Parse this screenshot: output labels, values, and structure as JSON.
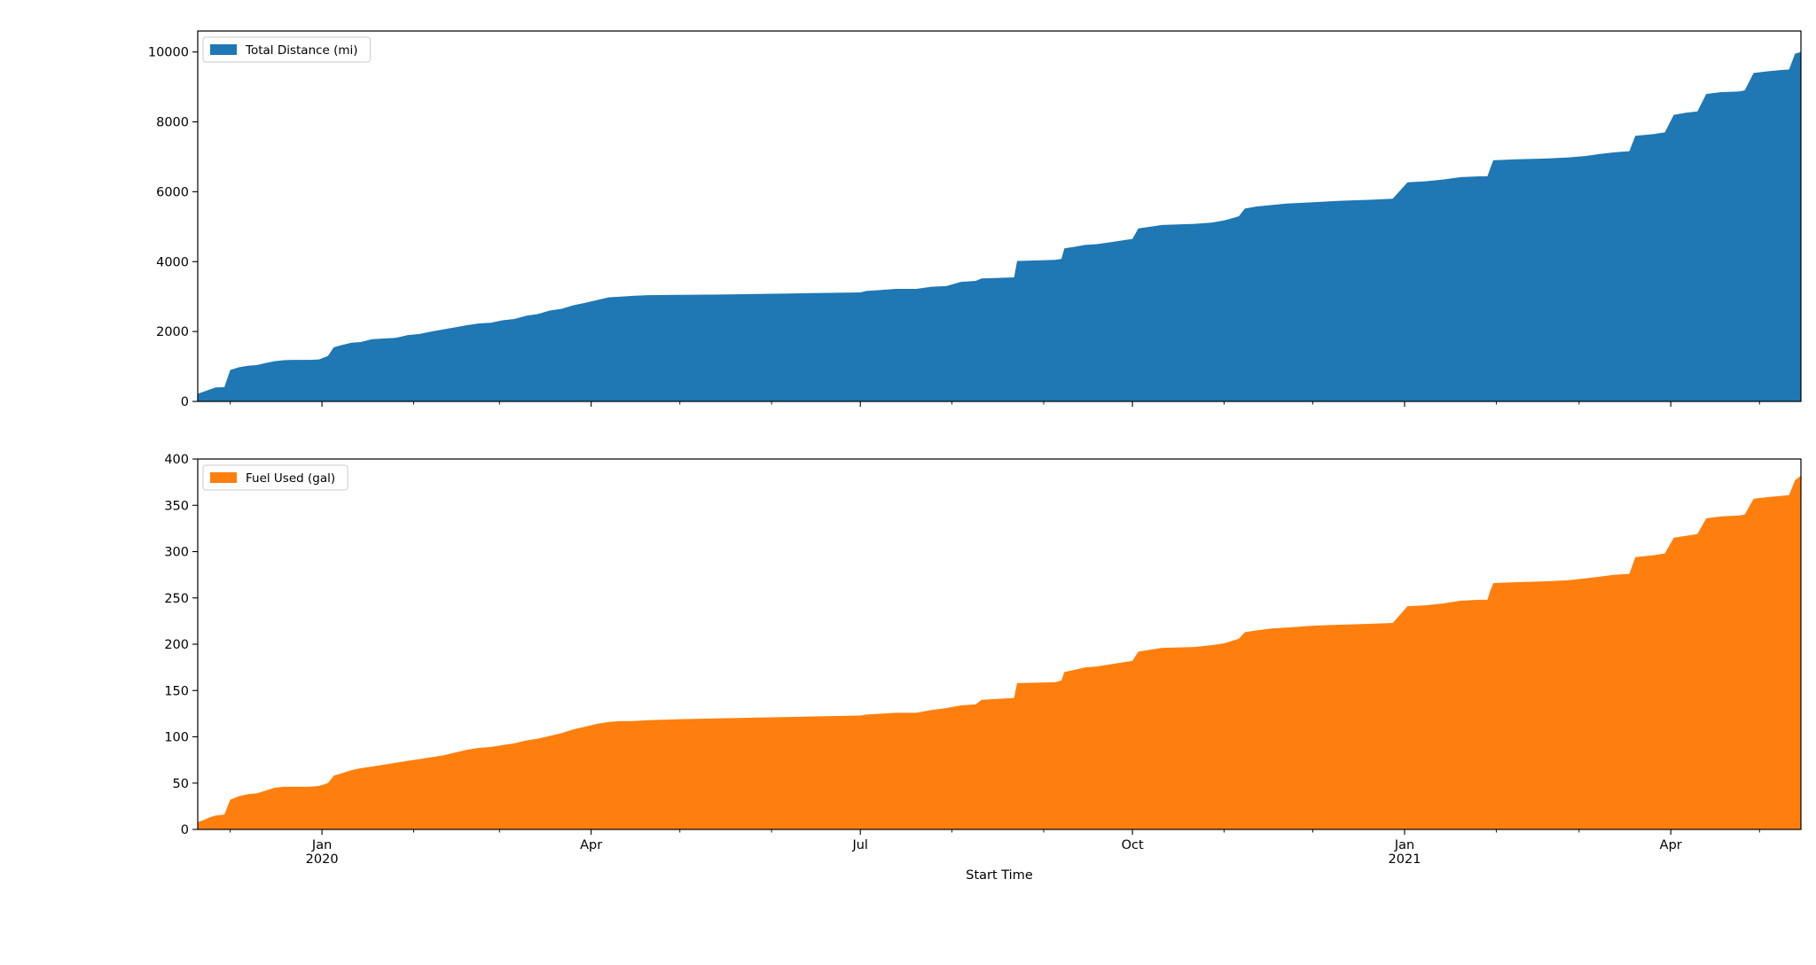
{
  "chart_data": {
    "type": "area",
    "shared_x": {
      "label": "Start Time",
      "range": [
        "2019-11-20",
        "2021-05-15"
      ],
      "major_ticks": [
        {
          "date": "2020-01-01",
          "label": "Jan",
          "sublabel": "2020"
        },
        {
          "date": "2020-04-01",
          "label": "Apr",
          "sublabel": ""
        },
        {
          "date": "2020-07-01",
          "label": "Jul",
          "sublabel": ""
        },
        {
          "date": "2020-10-01",
          "label": "Oct",
          "sublabel": ""
        },
        {
          "date": "2021-01-01",
          "label": "Jan",
          "sublabel": "2021"
        },
        {
          "date": "2021-04-01",
          "label": "Apr",
          "sublabel": ""
        }
      ],
      "minor_ticks": [
        "2019-12-01",
        "2020-02-01",
        "2020-03-01",
        "2020-05-01",
        "2020-06-01",
        "2020-08-01",
        "2020-09-01",
        "2020-11-01",
        "2020-12-01",
        "2021-02-01",
        "2021-03-01",
        "2021-05-01"
      ]
    },
    "panels": [
      {
        "series": {
          "name": "Total Distance (mi)",
          "color": "#1f77b4",
          "points": [
            [
              "2019-11-20",
              220
            ],
            [
              "2019-11-22",
              280
            ],
            [
              "2019-11-24",
              340
            ],
            [
              "2019-11-26",
              400
            ],
            [
              "2019-11-29",
              410
            ],
            [
              "2019-12-01",
              900
            ],
            [
              "2019-12-04",
              980
            ],
            [
              "2019-12-07",
              1020
            ],
            [
              "2019-12-10",
              1040
            ],
            [
              "2019-12-13",
              1100
            ],
            [
              "2019-12-16",
              1150
            ],
            [
              "2019-12-19",
              1180
            ],
            [
              "2019-12-22",
              1190
            ],
            [
              "2019-12-25",
              1190
            ],
            [
              "2019-12-28",
              1190
            ],
            [
              "2019-12-31",
              1200
            ],
            [
              "2020-01-03",
              1300
            ],
            [
              "2020-01-05",
              1550
            ],
            [
              "2020-01-08",
              1620
            ],
            [
              "2020-01-11",
              1680
            ],
            [
              "2020-01-14",
              1700
            ],
            [
              "2020-01-18",
              1780
            ],
            [
              "2020-01-22",
              1800
            ],
            [
              "2020-01-26",
              1820
            ],
            [
              "2020-01-30",
              1900
            ],
            [
              "2020-02-03",
              1930
            ],
            [
              "2020-02-07",
              2000
            ],
            [
              "2020-02-11",
              2060
            ],
            [
              "2020-02-15",
              2120
            ],
            [
              "2020-02-19",
              2180
            ],
            [
              "2020-02-23",
              2230
            ],
            [
              "2020-02-27",
              2250
            ],
            [
              "2020-03-02",
              2320
            ],
            [
              "2020-03-06",
              2360
            ],
            [
              "2020-03-10",
              2450
            ],
            [
              "2020-03-14",
              2500
            ],
            [
              "2020-03-18",
              2600
            ],
            [
              "2020-03-22",
              2650
            ],
            [
              "2020-03-26",
              2750
            ],
            [
              "2020-03-30",
              2820
            ],
            [
              "2020-04-03",
              2900
            ],
            [
              "2020-04-07",
              2980
            ],
            [
              "2020-04-11",
              3000
            ],
            [
              "2020-04-15",
              3020
            ],
            [
              "2020-04-20",
              3040
            ],
            [
              "2020-05-01",
              3050
            ],
            [
              "2020-05-15",
              3060
            ],
            [
              "2020-06-01",
              3080
            ],
            [
              "2020-06-15",
              3100
            ],
            [
              "2020-07-01",
              3120
            ],
            [
              "2020-07-03",
              3160
            ],
            [
              "2020-07-08",
              3190
            ],
            [
              "2020-07-13",
              3220
            ],
            [
              "2020-07-20",
              3220
            ],
            [
              "2020-07-25",
              3280
            ],
            [
              "2020-07-30",
              3300
            ],
            [
              "2020-08-04",
              3420
            ],
            [
              "2020-08-09",
              3450
            ],
            [
              "2020-08-11",
              3520
            ],
            [
              "2020-08-22",
              3550
            ],
            [
              "2020-08-23",
              4020
            ],
            [
              "2020-09-05",
              4050
            ],
            [
              "2020-09-07",
              4080
            ],
            [
              "2020-09-08",
              4380
            ],
            [
              "2020-09-11",
              4420
            ],
            [
              "2020-09-15",
              4480
            ],
            [
              "2020-09-19",
              4500
            ],
            [
              "2020-09-23",
              4550
            ],
            [
              "2020-09-27",
              4600
            ],
            [
              "2020-10-01",
              4650
            ],
            [
              "2020-10-03",
              4950
            ],
            [
              "2020-10-07",
              5000
            ],
            [
              "2020-10-11",
              5050
            ],
            [
              "2020-10-22",
              5080
            ],
            [
              "2020-10-28",
              5120
            ],
            [
              "2020-11-01",
              5180
            ],
            [
              "2020-11-04",
              5250
            ],
            [
              "2020-11-06",
              5300
            ],
            [
              "2020-11-08",
              5520
            ],
            [
              "2020-11-12",
              5580
            ],
            [
              "2020-11-17",
              5620
            ],
            [
              "2020-11-22",
              5660
            ],
            [
              "2020-12-01",
              5700
            ],
            [
              "2020-12-10",
              5740
            ],
            [
              "2020-12-20",
              5770
            ],
            [
              "2020-12-28",
              5800
            ],
            [
              "2021-01-02",
              6270
            ],
            [
              "2021-01-08",
              6300
            ],
            [
              "2021-01-14",
              6350
            ],
            [
              "2021-01-20",
              6420
            ],
            [
              "2021-01-26",
              6440
            ],
            [
              "2021-01-29",
              6440
            ],
            [
              "2021-01-30",
              6680
            ],
            [
              "2021-01-31",
              6900
            ],
            [
              "2021-02-08",
              6930
            ],
            [
              "2021-02-18",
              6950
            ],
            [
              "2021-02-25",
              6980
            ],
            [
              "2021-03-03",
              7020
            ],
            [
              "2021-03-08",
              7080
            ],
            [
              "2021-03-13",
              7130
            ],
            [
              "2021-03-18",
              7160
            ],
            [
              "2021-03-20",
              7600
            ],
            [
              "2021-03-26",
              7650
            ],
            [
              "2021-03-30",
              7700
            ],
            [
              "2021-04-02",
              8200
            ],
            [
              "2021-04-06",
              8260
            ],
            [
              "2021-04-10",
              8300
            ],
            [
              "2021-04-13",
              8800
            ],
            [
              "2021-04-18",
              8850
            ],
            [
              "2021-04-24",
              8870
            ],
            [
              "2021-04-26",
              8900
            ],
            [
              "2021-04-29",
              9400
            ],
            [
              "2021-05-04",
              9450
            ],
            [
              "2021-05-08",
              9480
            ],
            [
              "2021-05-11",
              9500
            ],
            [
              "2021-05-13",
              9950
            ],
            [
              "2021-05-15",
              10000
            ]
          ]
        },
        "ylim": [
          0,
          10600
        ],
        "yticks": [
          0,
          2000,
          4000,
          6000,
          8000,
          10000
        ],
        "legend_position": "upper-left"
      },
      {
        "series": {
          "name": "Fuel Used (gal)",
          "color": "#ff7f0e",
          "points": [
            [
              "2019-11-20",
              8
            ],
            [
              "2019-11-22",
              10
            ],
            [
              "2019-11-24",
              13
            ],
            [
              "2019-11-26",
              15
            ],
            [
              "2019-11-29",
              16
            ],
            [
              "2019-12-01",
              32
            ],
            [
              "2019-12-04",
              36
            ],
            [
              "2019-12-07",
              38
            ],
            [
              "2019-12-10",
              39
            ],
            [
              "2019-12-13",
              42
            ],
            [
              "2019-12-16",
              45
            ],
            [
              "2019-12-19",
              46
            ],
            [
              "2019-12-22",
              46
            ],
            [
              "2019-12-25",
              46
            ],
            [
              "2019-12-28",
              46
            ],
            [
              "2019-12-31",
              47
            ],
            [
              "2020-01-03",
              50
            ],
            [
              "2020-01-05",
              58
            ],
            [
              "2020-01-08",
              61
            ],
            [
              "2020-01-11",
              64
            ],
            [
              "2020-01-14",
              66
            ],
            [
              "2020-01-18",
              68
            ],
            [
              "2020-01-22",
              70
            ],
            [
              "2020-01-26",
              72
            ],
            [
              "2020-01-30",
              74
            ],
            [
              "2020-02-03",
              76
            ],
            [
              "2020-02-07",
              78
            ],
            [
              "2020-02-11",
              80
            ],
            [
              "2020-02-15",
              83
            ],
            [
              "2020-02-19",
              86
            ],
            [
              "2020-02-23",
              88
            ],
            [
              "2020-02-27",
              89
            ],
            [
              "2020-03-02",
              91
            ],
            [
              "2020-03-06",
              93
            ],
            [
              "2020-03-10",
              96
            ],
            [
              "2020-03-14",
              98
            ],
            [
              "2020-03-18",
              101
            ],
            [
              "2020-03-22",
              104
            ],
            [
              "2020-03-26",
              108
            ],
            [
              "2020-03-30",
              111
            ],
            [
              "2020-04-03",
              114
            ],
            [
              "2020-04-07",
              116
            ],
            [
              "2020-04-11",
              117
            ],
            [
              "2020-04-15",
              117
            ],
            [
              "2020-04-20",
              118
            ],
            [
              "2020-05-01",
              119
            ],
            [
              "2020-05-15",
              120
            ],
            [
              "2020-06-01",
              121
            ],
            [
              "2020-06-15",
              122
            ],
            [
              "2020-07-01",
              123
            ],
            [
              "2020-07-03",
              124
            ],
            [
              "2020-07-08",
              125
            ],
            [
              "2020-07-13",
              126
            ],
            [
              "2020-07-20",
              126
            ],
            [
              "2020-07-25",
              129
            ],
            [
              "2020-07-30",
              131
            ],
            [
              "2020-08-04",
              134
            ],
            [
              "2020-08-09",
              135
            ],
            [
              "2020-08-11",
              140
            ],
            [
              "2020-08-22",
              142
            ],
            [
              "2020-08-23",
              158
            ],
            [
              "2020-09-05",
              159
            ],
            [
              "2020-09-07",
              161
            ],
            [
              "2020-09-08",
              170
            ],
            [
              "2020-09-11",
              172
            ],
            [
              "2020-09-15",
              175
            ],
            [
              "2020-09-19",
              176
            ],
            [
              "2020-09-23",
              178
            ],
            [
              "2020-09-27",
              180
            ],
            [
              "2020-10-01",
              182
            ],
            [
              "2020-10-03",
              192
            ],
            [
              "2020-10-07",
              194
            ],
            [
              "2020-10-11",
              196
            ],
            [
              "2020-10-22",
              197
            ],
            [
              "2020-10-28",
              199
            ],
            [
              "2020-11-01",
              201
            ],
            [
              "2020-11-04",
              204
            ],
            [
              "2020-11-06",
              206
            ],
            [
              "2020-11-08",
              213
            ],
            [
              "2020-11-12",
              215
            ],
            [
              "2020-11-17",
              217
            ],
            [
              "2020-11-22",
              218
            ],
            [
              "2020-12-01",
              220
            ],
            [
              "2020-12-10",
              221
            ],
            [
              "2020-12-20",
              222
            ],
            [
              "2020-12-28",
              223
            ],
            [
              "2021-01-02",
              241
            ],
            [
              "2021-01-08",
              242
            ],
            [
              "2021-01-14",
              244
            ],
            [
              "2021-01-20",
              247
            ],
            [
              "2021-01-26",
              248
            ],
            [
              "2021-01-29",
              248
            ],
            [
              "2021-01-30",
              258
            ],
            [
              "2021-01-31",
              266
            ],
            [
              "2021-02-08",
              267
            ],
            [
              "2021-02-18",
              268
            ],
            [
              "2021-02-25",
              269
            ],
            [
              "2021-03-03",
              271
            ],
            [
              "2021-03-08",
              273
            ],
            [
              "2021-03-13",
              275
            ],
            [
              "2021-03-18",
              276
            ],
            [
              "2021-03-20",
              294
            ],
            [
              "2021-03-26",
              296
            ],
            [
              "2021-03-30",
              298
            ],
            [
              "2021-04-02",
              315
            ],
            [
              "2021-04-06",
              317
            ],
            [
              "2021-04-10",
              319
            ],
            [
              "2021-04-13",
              336
            ],
            [
              "2021-04-18",
              338
            ],
            [
              "2021-04-24",
              339
            ],
            [
              "2021-04-26",
              340
            ],
            [
              "2021-04-29",
              357
            ],
            [
              "2021-05-04",
              359
            ],
            [
              "2021-05-08",
              360
            ],
            [
              "2021-05-11",
              361
            ],
            [
              "2021-05-13",
              377
            ],
            [
              "2021-05-15",
              382
            ]
          ]
        },
        "ylim": [
          0,
          400
        ],
        "yticks": [
          0,
          50,
          100,
          150,
          200,
          250,
          300,
          350,
          400
        ],
        "legend_position": "upper-left"
      }
    ]
  }
}
